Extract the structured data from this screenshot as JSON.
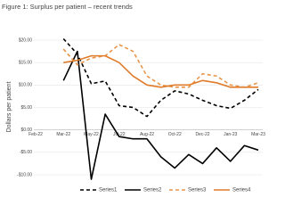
{
  "chart_data": {
    "type": "line",
    "title": "Figure 1: Surplus per patient – recent trends",
    "y_label": "Dollars per patient",
    "categories": [
      "Feb-22",
      null,
      "Mar-22",
      null,
      "May-22",
      null,
      "Jul-22",
      null,
      "Aug-22",
      null,
      "Oct-22",
      null,
      "Dec-22",
      null,
      "Jan-23",
      null,
      "Mar-23"
    ],
    "series": [
      {
        "name": "Series1",
        "color": "#000000",
        "dash": true,
        "values": [
          null,
          null,
          20.3,
          16.9,
          10.3,
          10.9,
          5.4,
          5,
          3,
          6.6,
          8.7,
          8,
          6.6,
          5.4,
          4.8,
          6.6,
          9
        ]
      },
      {
        "name": "Series2",
        "color": "#000000",
        "dash": false,
        "values": [
          null,
          null,
          11,
          17.5,
          -11,
          3.5,
          -1.5,
          -2,
          -2,
          -6,
          -8.5,
          -5.5,
          -7.5,
          -4,
          -7,
          -3.5,
          -4.5
        ]
      },
      {
        "name": "Series3",
        "color": "#e8954a",
        "dash": true,
        "values": [
          null,
          null,
          18,
          14.5,
          16,
          16.5,
          19,
          17.5,
          12,
          10,
          9.5,
          9.5,
          12.5,
          12,
          10,
          9.5,
          10.5
        ]
      },
      {
        "name": "Series4",
        "color": "#e07b2a",
        "dash": false,
        "values": [
          null,
          null,
          15,
          15.5,
          16.5,
          16.5,
          15,
          12,
          10,
          9.5,
          10,
          10,
          11,
          10.5,
          9.5,
          9.5,
          9.5
        ]
      }
    ],
    "ylim": [
      -10,
      20
    ],
    "yticks": [
      {
        "value": -10,
        "label": "-$10.00"
      },
      {
        "value": -5,
        "label": "-$5.00"
      },
      {
        "value": 0,
        "label": "$0.00"
      },
      {
        "value": 5,
        "label": "$5.00"
      },
      {
        "value": 10,
        "label": "$10.00"
      },
      {
        "value": 15,
        "label": "$15.00"
      },
      {
        "value": 20,
        "label": "$20.00"
      }
    ],
    "grid": true,
    "legend": "bottom"
  }
}
